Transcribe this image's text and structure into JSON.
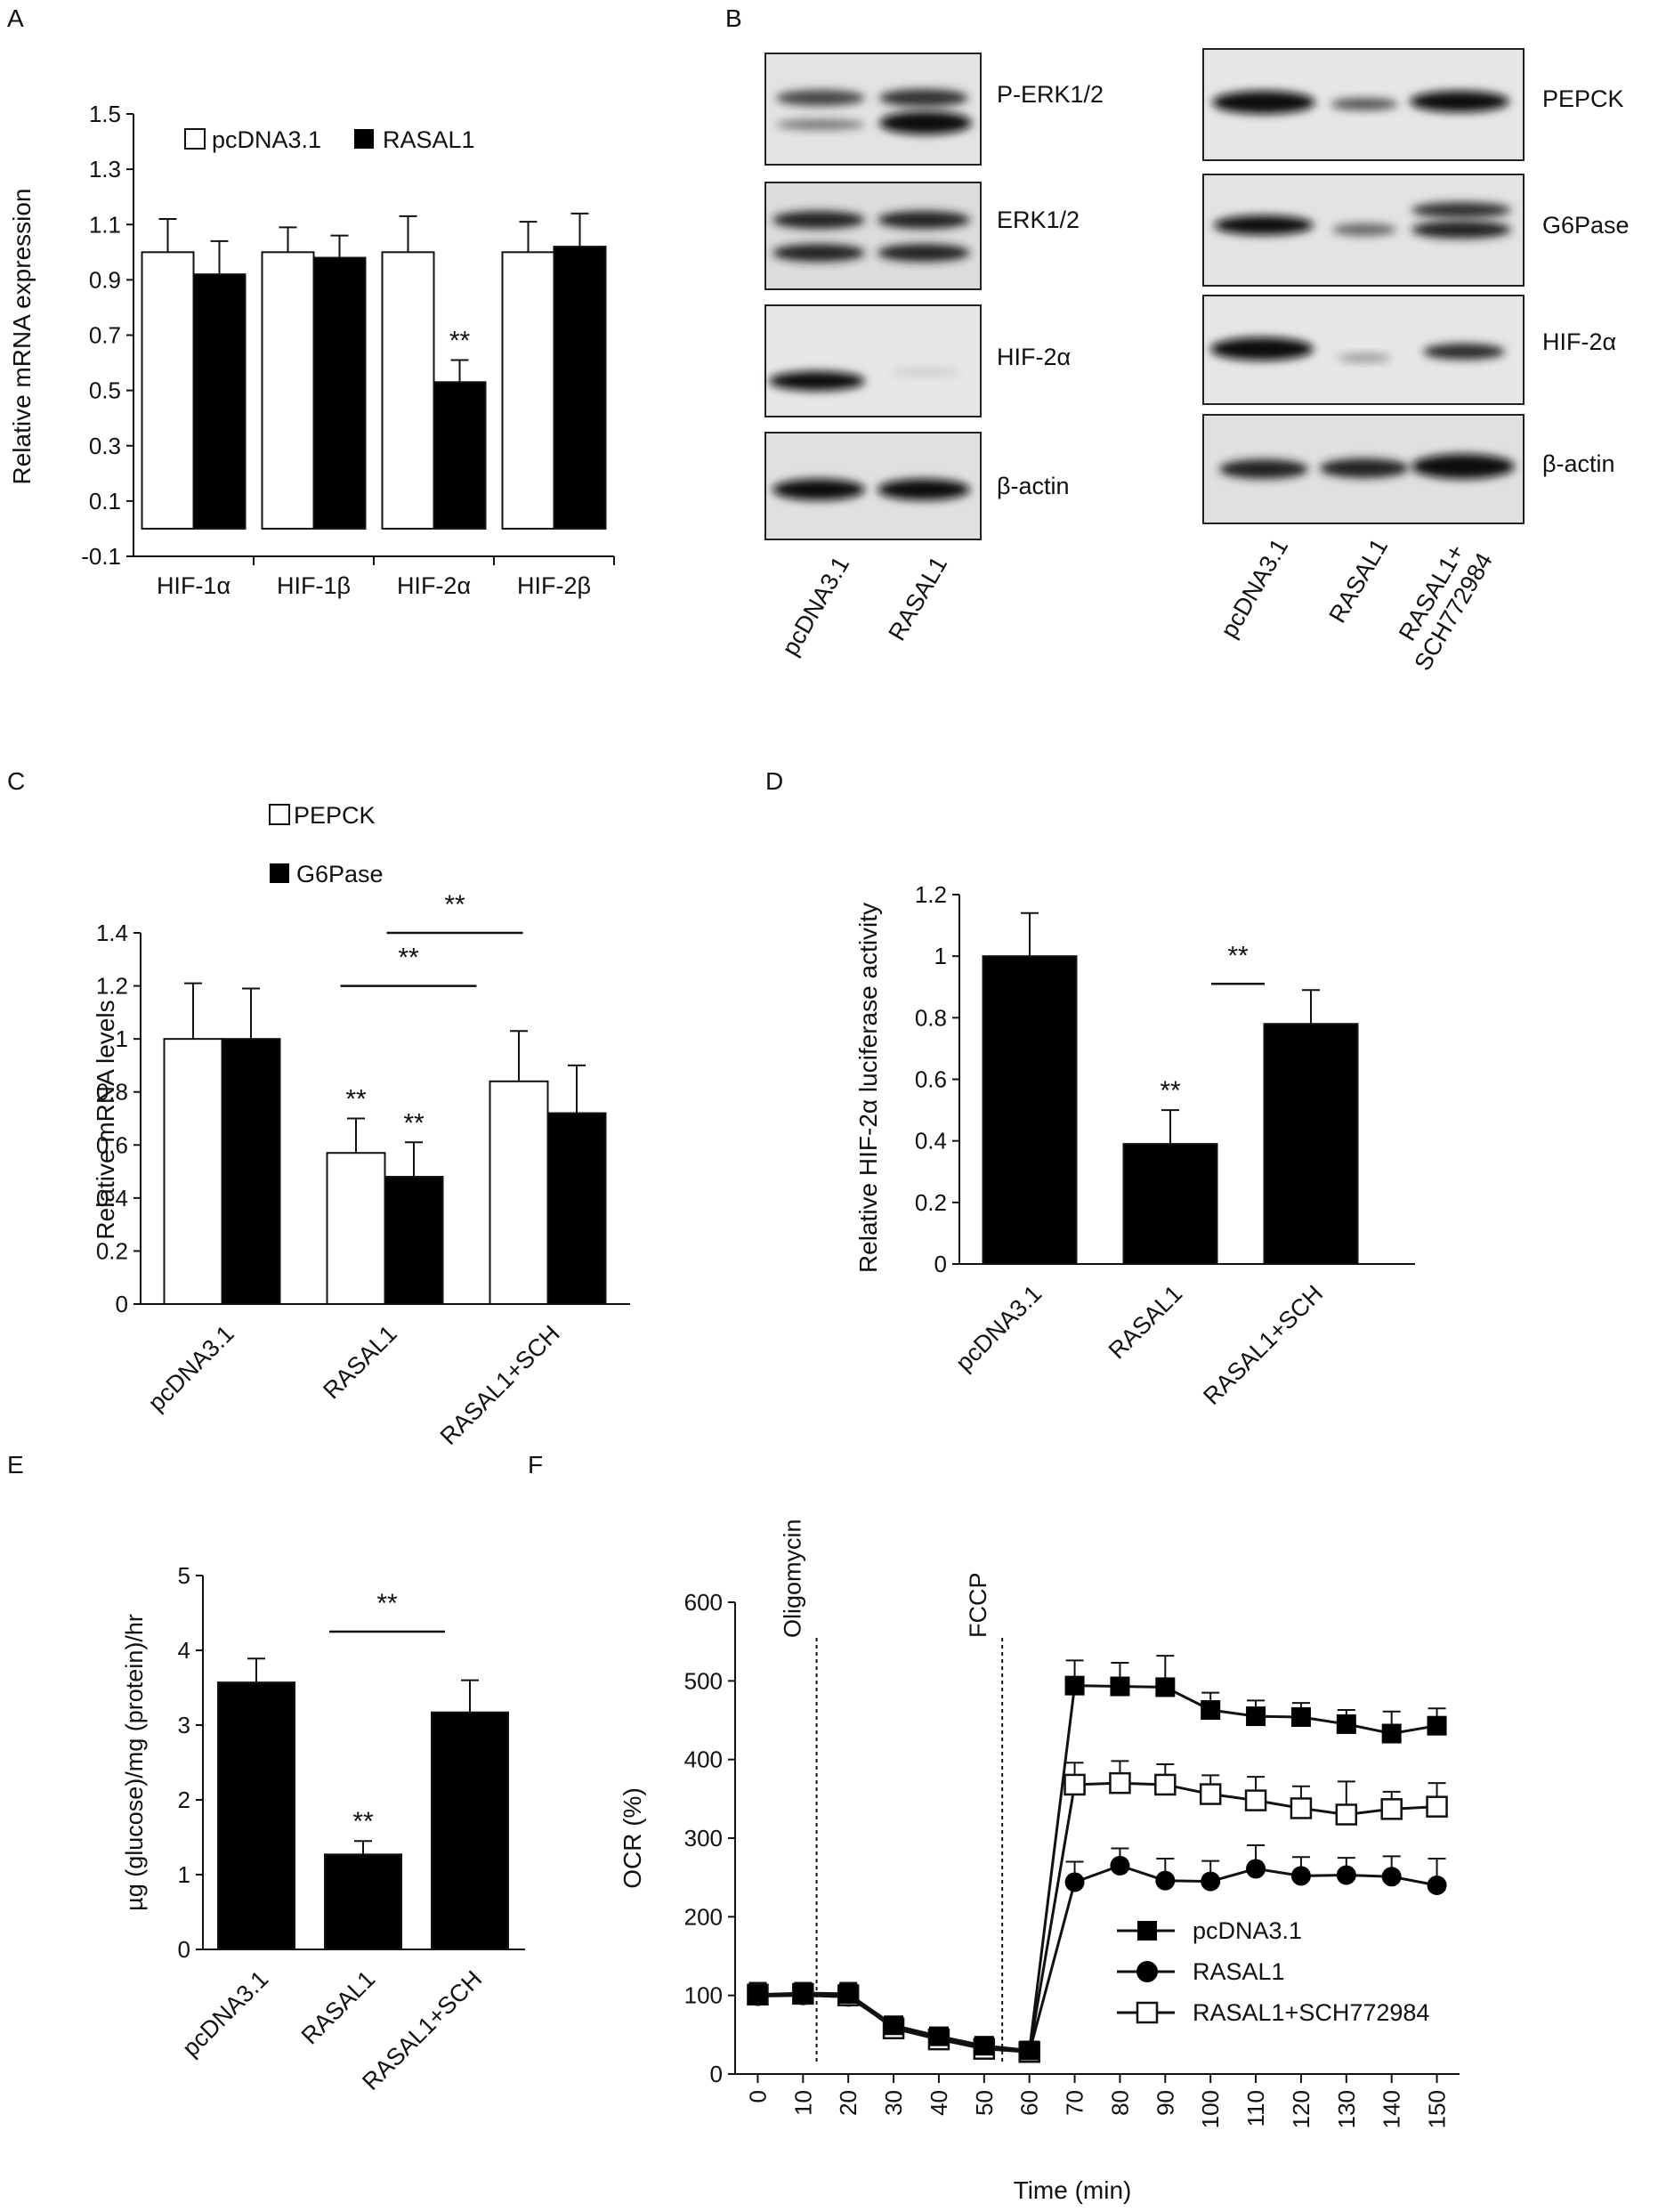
{
  "panel_letters": [
    "A",
    "B",
    "C",
    "D",
    "E",
    "F"
  ],
  "chart_data": [
    {
      "panel": "A",
      "type": "bar",
      "ylabel": "Relative mRNA expression",
      "categories": [
        "HIF-1α",
        "HIF-1β",
        "HIF-2α",
        "HIF-2β"
      ],
      "yticks": [
        "1.5",
        "1.3",
        "1.1",
        "0.9",
        "0.7",
        "0.5",
        "0.3",
        "0.1",
        "-0.1"
      ],
      "ylim": [
        -0.1,
        1.5
      ],
      "legend": "top",
      "series": [
        {
          "name": "pcDNA3.1",
          "fill": "#ffffff",
          "values": [
            1.0,
            1.0,
            1.0,
            1.0
          ],
          "errors": [
            0.12,
            0.09,
            0.13,
            0.11
          ]
        },
        {
          "name": "RASAL1",
          "fill": "#000000",
          "values": [
            0.92,
            0.98,
            0.53,
            1.02
          ],
          "errors": [
            0.12,
            0.08,
            0.08,
            0.12
          ]
        }
      ],
      "annotations": [
        {
          "text": "**",
          "category": 2,
          "series": 1
        }
      ]
    },
    {
      "panel": "C",
      "type": "bar",
      "ylabel": "Relative mRNA levels",
      "categories": [
        "pcDNA3.1",
        "RASAL1",
        "RASAL1+SCH"
      ],
      "yticks": [
        "1.4",
        "1.2",
        "1",
        "0.8",
        "0.6",
        "0.4",
        "0.2",
        "0"
      ],
      "ylim": [
        0,
        1.4
      ],
      "legend": "top-left",
      "series": [
        {
          "name": "PEPCK",
          "fill": "#ffffff",
          "values": [
            1.0,
            0.57,
            0.84
          ],
          "errors": [
            0.21,
            0.13,
            0.19
          ]
        },
        {
          "name": "G6Pase",
          "fill": "#000000",
          "values": [
            1.0,
            0.48,
            0.72
          ],
          "errors": [
            0.19,
            0.13,
            0.18
          ]
        }
      ],
      "annotations": [
        {
          "text": "**",
          "category": 1,
          "series": 0
        },
        {
          "text": "**",
          "category": 1,
          "series": 1
        }
      ],
      "brackets": [
        {
          "text": "**",
          "from": 1,
          "to": 2,
          "value": 1.2
        },
        {
          "text": "**",
          "from": 1,
          "to": 2,
          "value": 1.4
        }
      ]
    },
    {
      "panel": "D",
      "type": "bar",
      "ylabel": "Relative HIF-2α luciferase activity",
      "categories": [
        "pcDNA3.1",
        "RASAL1",
        "RASAL1+SCH"
      ],
      "yticks": [
        "1.2",
        "1",
        "0.8",
        "0.6",
        "0.4",
        "0.2",
        "0"
      ],
      "ylim": [
        0,
        1.2
      ],
      "series": [
        {
          "fill": "#000000",
          "values": [
            1.0,
            0.39,
            0.78
          ],
          "errors": [
            0.14,
            0.11,
            0.11
          ]
        }
      ],
      "annotations": [
        {
          "text": "**",
          "category": 1
        }
      ],
      "brackets": [
        {
          "text": "**",
          "from": 1,
          "to": 2,
          "value": 0.91
        }
      ]
    },
    {
      "panel": "E",
      "type": "bar",
      "ylabel": "µg (glucose)/mg (protein)/hr",
      "categories": [
        "pcDNA3.1",
        "RASAL1",
        "RASAL1+SCH"
      ],
      "yticks": [
        "5",
        "4",
        "3",
        "2",
        "1",
        "0"
      ],
      "ylim": [
        0,
        5
      ],
      "series": [
        {
          "fill": "#000000",
          "values": [
            3.57,
            1.27,
            3.17
          ],
          "errors": [
            0.32,
            0.18,
            0.43
          ]
        }
      ],
      "annotations": [
        {
          "text": "**",
          "category": 1
        }
      ],
      "brackets": [
        {
          "text": "**",
          "from": 1,
          "to": 2,
          "value": 4.25
        }
      ]
    },
    {
      "panel": "F",
      "type": "line",
      "xlabel": "Time (min)",
      "ylabel": "OCR (%)",
      "x": [
        0,
        10,
        20,
        30,
        40,
        50,
        60,
        70,
        80,
        90,
        100,
        110,
        120,
        130,
        140,
        150
      ],
      "xticks": [
        "0",
        "10",
        "20",
        "30",
        "40",
        "50",
        "60",
        "70",
        "80",
        "90",
        "100",
        "110",
        "120",
        "130",
        "140",
        "150"
      ],
      "yticks": [
        "600",
        "500",
        "400",
        "300",
        "200",
        "100",
        "0"
      ],
      "ylim": [
        0,
        600
      ],
      "xlim": [
        -5,
        155
      ],
      "legend": "bottom-right",
      "series": [
        {
          "name": "pcDNA3.1",
          "marker": "filled-square",
          "values": [
            101,
            103,
            102,
            62,
            48,
            36,
            30,
            494,
            493,
            492,
            463,
            455,
            454,
            445,
            433,
            443
          ],
          "errors": [
            15,
            13,
            14,
            10,
            8,
            7,
            8,
            32,
            30,
            40,
            22,
            20,
            18,
            18,
            28,
            22
          ]
        },
        {
          "name": "RASAL1",
          "marker": "filled-circle",
          "values": [
            99,
            100,
            98,
            60,
            46,
            34,
            28,
            244,
            265,
            246,
            245,
            261,
            252,
            253,
            251,
            240
          ],
          "errors": [
            15,
            13,
            14,
            10,
            8,
            7,
            8,
            26,
            22,
            28,
            26,
            30,
            24,
            22,
            26,
            34
          ]
        },
        {
          "name": "RASAL1+SCH772984",
          "marker": "open-square",
          "values": [
            101,
            102,
            100,
            58,
            44,
            32,
            28,
            368,
            370,
            368,
            356,
            348,
            338,
            330,
            337,
            340
          ],
          "errors": [
            15,
            13,
            14,
            10,
            8,
            7,
            8,
            28,
            28,
            26,
            24,
            30,
            28,
            42,
            22,
            30
          ]
        }
      ],
      "annotations": [
        {
          "text": "Oligomycin",
          "x": 13
        },
        {
          "text": "FCCP",
          "x": 54
        }
      ]
    }
  ],
  "blot_b_left": {
    "bands": [
      "P-ERK1/2",
      "ERK1/2",
      "HIF-2α",
      "β-actin"
    ],
    "lanes": [
      "pcDNA3.1",
      "RASAL1"
    ]
  },
  "blot_b_right": {
    "bands": [
      "PEPCK",
      "G6Pase",
      "HIF-2α",
      "β-actin"
    ],
    "lanes": [
      "pcDNA3.1",
      "RASAL1",
      "RASAL1+\nSCH772984"
    ]
  }
}
